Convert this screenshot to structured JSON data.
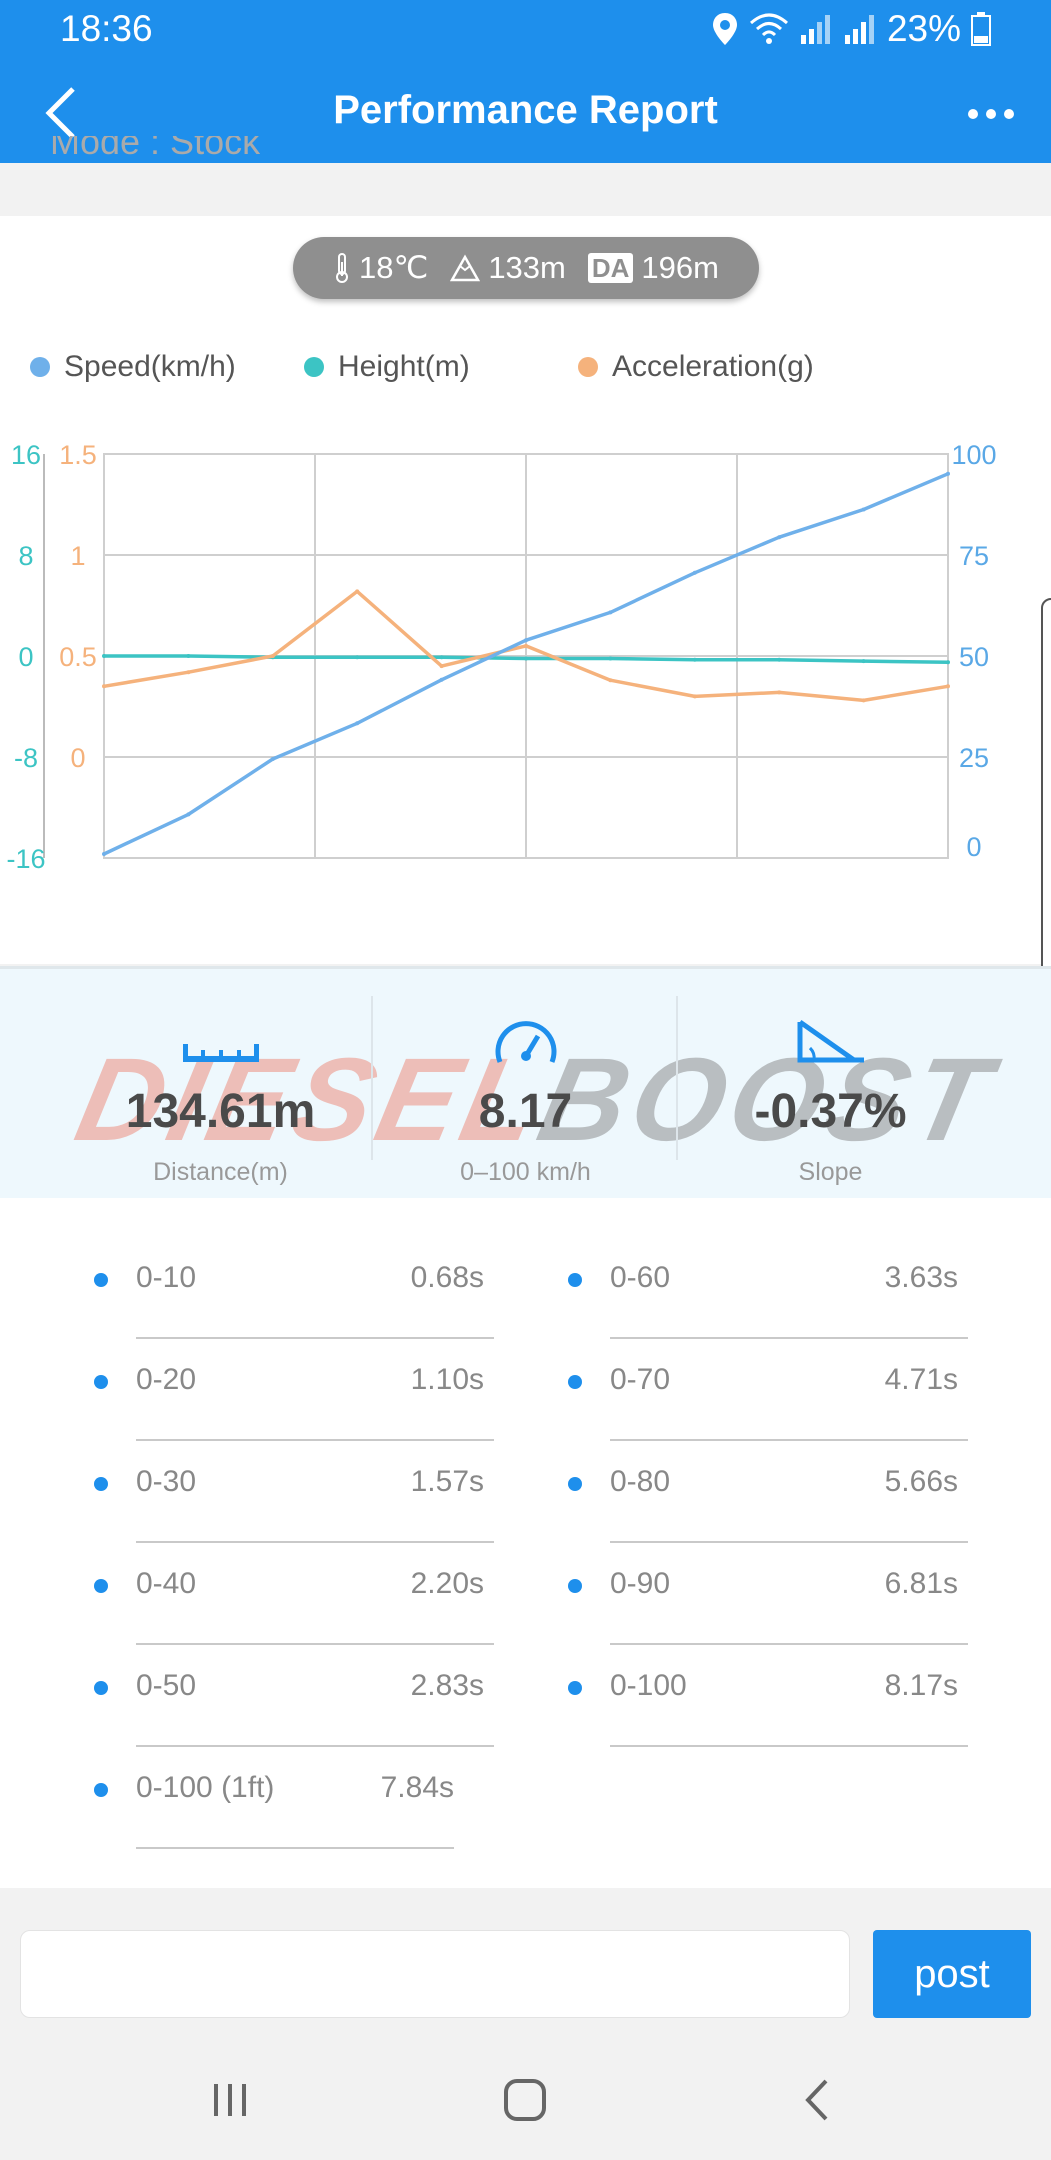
{
  "status_bar": {
    "time": "18:36",
    "battery": "23%"
  },
  "header": {
    "title": "Performance Report"
  },
  "peek_text": "Mode : Stock",
  "env": {
    "temperature": "18℃",
    "altitude": "133m",
    "da_badge": "DA",
    "density_altitude": "196m"
  },
  "chart_data": {
    "type": "line",
    "x": [
      0,
      2,
      4,
      6,
      8,
      10,
      12,
      14,
      16,
      18,
      20
    ],
    "series": [
      {
        "name": "Speed(km/h)",
        "axis": "right",
        "color": "#6fb0ea",
        "values": [
          0,
          10,
          24,
          33,
          44,
          54,
          61,
          71,
          80,
          87,
          96
        ]
      },
      {
        "name": "Height(m)",
        "axis": "left-outer",
        "color": "#3cc4c4",
        "values": [
          0,
          0,
          -0.1,
          -0.1,
          -0.1,
          -0.2,
          -0.2,
          -0.3,
          -0.3,
          -0.4,
          -0.5
        ]
      },
      {
        "name": "Acceleration(g)",
        "axis": "left-inner",
        "color": "#f5b27c",
        "values": [
          0.35,
          0.42,
          0.5,
          0.82,
          0.45,
          0.55,
          0.38,
          0.3,
          0.32,
          0.28,
          0.35
        ]
      }
    ],
    "axes": {
      "left_outer": {
        "ticks": [
          "16",
          "8",
          "0",
          "-8",
          "-16"
        ],
        "range": [
          -16,
          16
        ],
        "color": "#3cc4c4"
      },
      "left_inner": {
        "ticks": [
          "1.5",
          "1",
          "0.5",
          "0"
        ],
        "range": [
          -0.5,
          1.5
        ],
        "color": "#f5b27c"
      },
      "right": {
        "ticks": [
          "100",
          "75",
          "50",
          "25",
          "0"
        ],
        "range": [
          0,
          100
        ],
        "color": "#5aa8e6"
      }
    },
    "grid": true,
    "legend": "top"
  },
  "metrics": [
    {
      "value": "134.61m",
      "label": "Distance(m)",
      "icon": "ruler-icon"
    },
    {
      "value": "8.17",
      "label": "0–100 km/h",
      "icon": "speedometer-icon"
    },
    {
      "value": "-0.37%",
      "label": "Slope",
      "icon": "slope-icon"
    }
  ],
  "watermark": {
    "part1": "DIESEL",
    "part2": "BOOST"
  },
  "splits": [
    {
      "label": "0-10",
      "time": "0.68s"
    },
    {
      "label": "0-60",
      "time": "3.63s"
    },
    {
      "label": "0-20",
      "time": "1.10s"
    },
    {
      "label": "0-70",
      "time": "4.71s"
    },
    {
      "label": "0-30",
      "time": "1.57s"
    },
    {
      "label": "0-80",
      "time": "5.66s"
    },
    {
      "label": "0-40",
      "time": "2.20s"
    },
    {
      "label": "0-90",
      "time": "6.81s"
    },
    {
      "label": "0-50",
      "time": "2.83s"
    },
    {
      "label": "0-100",
      "time": "8.17s"
    },
    {
      "label": "0-100 (1ft)",
      "time": "7.84s"
    }
  ],
  "comment": {
    "placeholder": "",
    "post_label": "post"
  },
  "colors": {
    "brand": "#1e8fec",
    "speed": "#6fb0ea",
    "height": "#3cc4c4",
    "accel": "#f5b27c"
  }
}
